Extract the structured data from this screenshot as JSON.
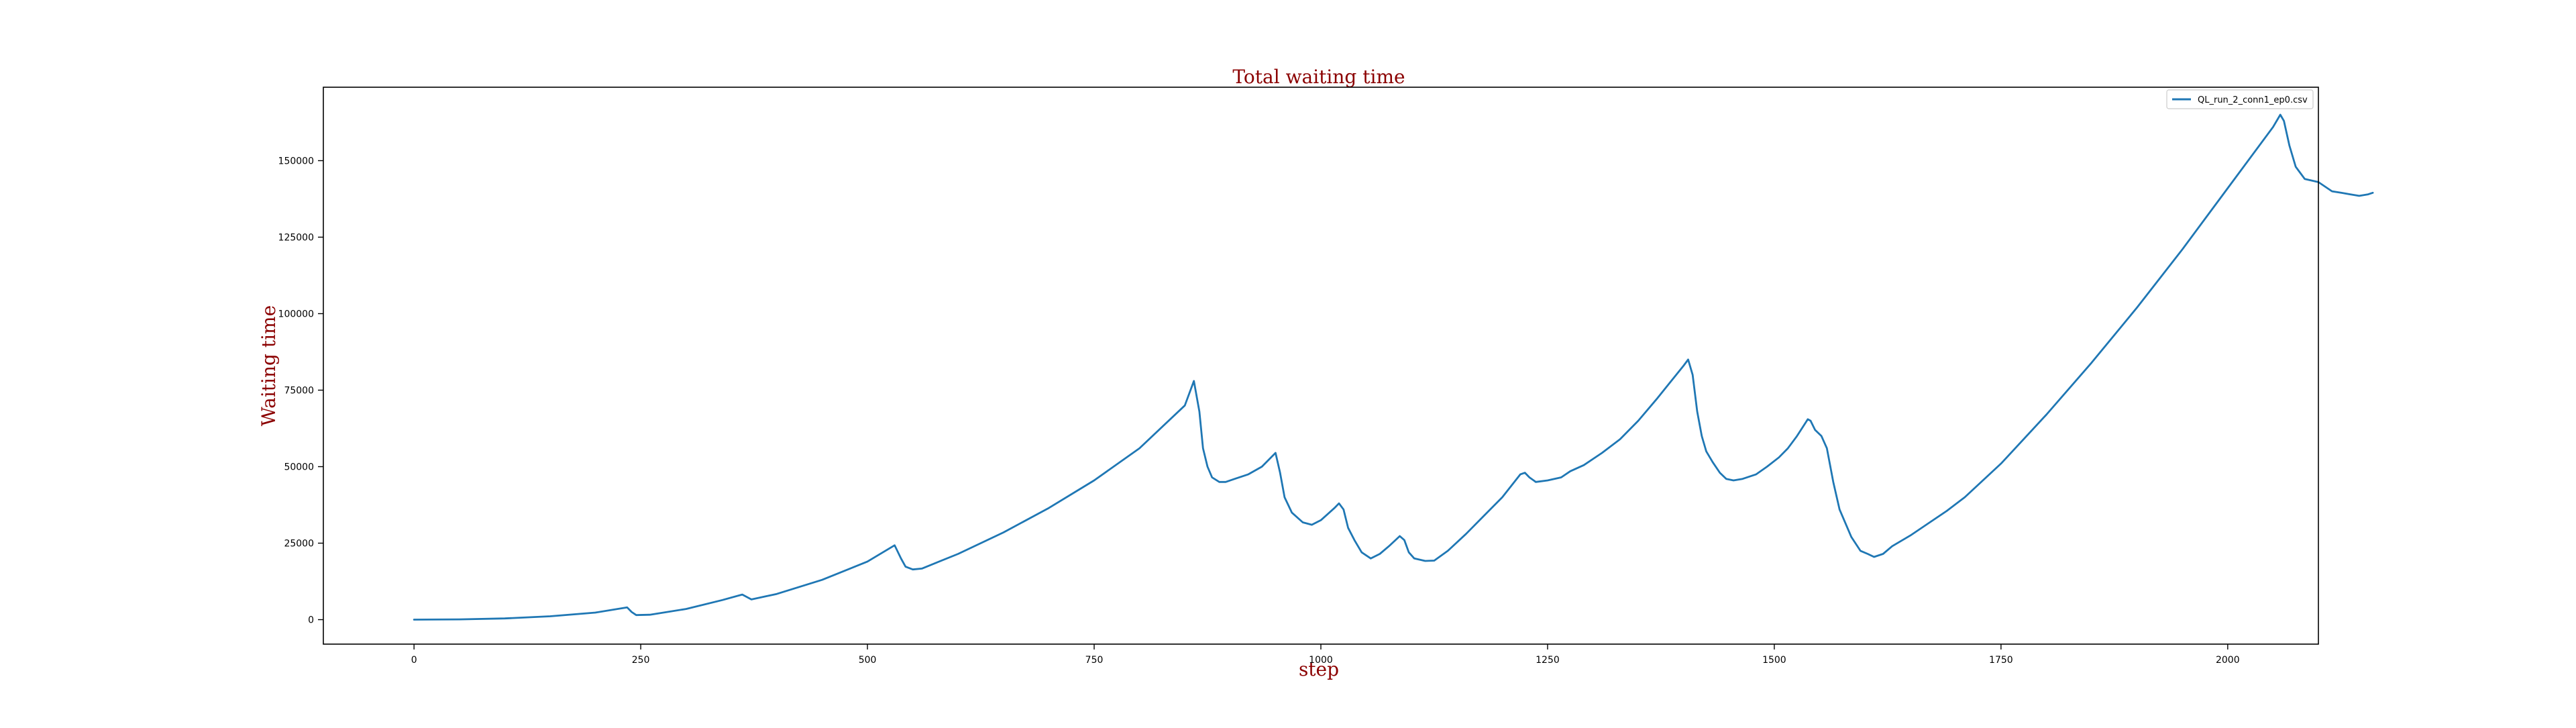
{
  "colors": {
    "title": "#8b0000",
    "axis_label": "#8b0000",
    "series": "#1f77b4",
    "frame": "#000000",
    "tick_text": "#000000",
    "legend_border": "#cccccc"
  },
  "chart_data": {
    "type": "line",
    "title": "Total waiting time",
    "xlabel": "step",
    "ylabel": "Waiting time",
    "xlim": [
      -100,
      2100
    ],
    "ylim": [
      -8000,
      174000
    ],
    "xticks": [
      0,
      250,
      500,
      750,
      1000,
      1250,
      1500,
      1750,
      2000
    ],
    "yticks": [
      0,
      25000,
      50000,
      75000,
      100000,
      125000,
      150000
    ],
    "grid": false,
    "legend_position": "top-right",
    "series": [
      {
        "name": "QL_run_2_conn1_ep0.csv",
        "color": "#1f77b4",
        "points": [
          [
            0,
            0
          ],
          [
            50,
            100
          ],
          [
            100,
            400
          ],
          [
            150,
            1100
          ],
          [
            200,
            2300
          ],
          [
            235,
            4000
          ],
          [
            240,
            2500
          ],
          [
            245,
            1500
          ],
          [
            260,
            1600
          ],
          [
            300,
            3500
          ],
          [
            340,
            6400
          ],
          [
            362,
            8200
          ],
          [
            372,
            6600
          ],
          [
            400,
            8400
          ],
          [
            450,
            13000
          ],
          [
            500,
            19000
          ],
          [
            530,
            24300
          ],
          [
            537,
            20000
          ],
          [
            542,
            17300
          ],
          [
            550,
            16400
          ],
          [
            560,
            16700
          ],
          [
            600,
            21500
          ],
          [
            650,
            28500
          ],
          [
            700,
            36500
          ],
          [
            750,
            45500
          ],
          [
            800,
            56000
          ],
          [
            850,
            70000
          ],
          [
            860,
            78000
          ],
          [
            866,
            68000
          ],
          [
            870,
            56000
          ],
          [
            875,
            50000
          ],
          [
            880,
            46500
          ],
          [
            888,
            45000
          ],
          [
            895,
            45000
          ],
          [
            905,
            46000
          ],
          [
            920,
            47500
          ],
          [
            935,
            50000
          ],
          [
            950,
            54500
          ],
          [
            955,
            48000
          ],
          [
            960,
            40000
          ],
          [
            968,
            35000
          ],
          [
            980,
            31800
          ],
          [
            990,
            31000
          ],
          [
            1000,
            32500
          ],
          [
            1015,
            36500
          ],
          [
            1020,
            38000
          ],
          [
            1025,
            36000
          ],
          [
            1030,
            30000
          ],
          [
            1037,
            26000
          ],
          [
            1045,
            22000
          ],
          [
            1055,
            20000
          ],
          [
            1065,
            21500
          ],
          [
            1075,
            24000
          ],
          [
            1087,
            27300
          ],
          [
            1092,
            26000
          ],
          [
            1097,
            22000
          ],
          [
            1103,
            20000
          ],
          [
            1115,
            19200
          ],
          [
            1125,
            19300
          ],
          [
            1140,
            22500
          ],
          [
            1160,
            28000
          ],
          [
            1180,
            34000
          ],
          [
            1200,
            40000
          ],
          [
            1220,
            47500
          ],
          [
            1225,
            48000
          ],
          [
            1230,
            46500
          ],
          [
            1237,
            45000
          ],
          [
            1250,
            45500
          ],
          [
            1265,
            46500
          ],
          [
            1275,
            48500
          ],
          [
            1290,
            50500
          ],
          [
            1310,
            54500
          ],
          [
            1330,
            59000
          ],
          [
            1350,
            65000
          ],
          [
            1370,
            72000
          ],
          [
            1385,
            77500
          ],
          [
            1400,
            83000
          ],
          [
            1405,
            85000
          ],
          [
            1410,
            80000
          ],
          [
            1415,
            68000
          ],
          [
            1420,
            60000
          ],
          [
            1425,
            55000
          ],
          [
            1432,
            51500
          ],
          [
            1440,
            48000
          ],
          [
            1447,
            46000
          ],
          [
            1455,
            45500
          ],
          [
            1465,
            46000
          ],
          [
            1480,
            47500
          ],
          [
            1492,
            50000
          ],
          [
            1505,
            53000
          ],
          [
            1515,
            56000
          ],
          [
            1525,
            60000
          ],
          [
            1537,
            65500
          ],
          [
            1540,
            65000
          ],
          [
            1545,
            62000
          ],
          [
            1552,
            60000
          ],
          [
            1558,
            56000
          ],
          [
            1565,
            45000
          ],
          [
            1572,
            36000
          ],
          [
            1585,
            27000
          ],
          [
            1595,
            22500
          ],
          [
            1603,
            21500
          ],
          [
            1610,
            20500
          ],
          [
            1620,
            21500
          ],
          [
            1630,
            24000
          ],
          [
            1650,
            27500
          ],
          [
            1670,
            31500
          ],
          [
            1690,
            35500
          ],
          [
            1710,
            40000
          ],
          [
            1750,
            51000
          ],
          [
            1800,
            67000
          ],
          [
            1850,
            84000
          ],
          [
            1900,
            102000
          ],
          [
            1950,
            121000
          ],
          [
            2000,
            141000
          ],
          [
            2050,
            161000
          ],
          [
            2058,
            165000
          ],
          [
            2062,
            163000
          ],
          [
            2068,
            155000
          ],
          [
            2075,
            148000
          ],
          [
            2085,
            144000
          ],
          [
            2100,
            143000
          ],
          [
            2115,
            140000
          ],
          [
            2125,
            139500
          ],
          [
            2135,
            139000
          ],
          [
            2145,
            138500
          ],
          [
            2155,
            139000
          ],
          [
            2160,
            139500
          ]
        ]
      }
    ]
  }
}
